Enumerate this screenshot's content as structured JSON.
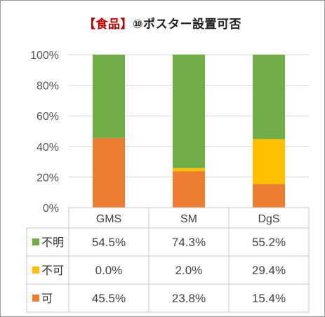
{
  "chart_data": {
    "type": "bar",
    "stacked": true,
    "percent": true,
    "title_prefix": "【食品】",
    "title_main": "⑩ポスター設置可否",
    "categories": [
      "GMS",
      "SM",
      "DgS"
    ],
    "ylim": [
      0,
      100
    ],
    "yticks": [
      "0%",
      "20%",
      "40%",
      "60%",
      "80%",
      "100%"
    ],
    "grid": true,
    "legend": "data-table",
    "series": [
      {
        "name": "可",
        "color": "#ed7d31",
        "values": [
          45.5,
          23.8,
          15.4
        ],
        "labels": [
          "45.5%",
          "23.8%",
          "15.4%"
        ]
      },
      {
        "name": "不可",
        "color": "#ffc000",
        "values": [
          0.0,
          2.0,
          29.4
        ],
        "labels": [
          "0.0%",
          "2.0%",
          "29.4%"
        ]
      },
      {
        "name": "不明",
        "color": "#70ad47",
        "values": [
          54.5,
          74.3,
          55.2
        ],
        "labels": [
          "54.5%",
          "74.3%",
          "55.2%"
        ]
      }
    ]
  }
}
